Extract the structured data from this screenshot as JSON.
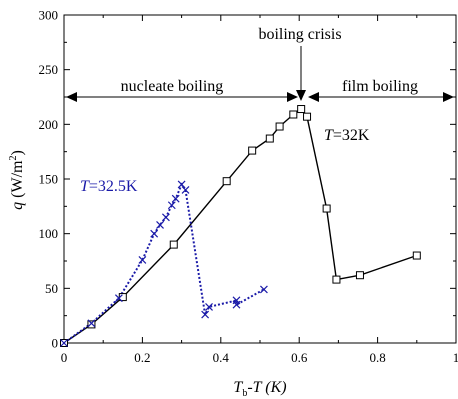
{
  "chart_data": {
    "type": "line",
    "xlabel": {
      "main": "T",
      "sub": "b",
      "rest": "-T  (K)"
    },
    "ylabel": {
      "main": "q",
      "rest": " (W/m",
      "sup": "2",
      "close": ")"
    },
    "xlim": [
      0,
      1
    ],
    "ylim": [
      0,
      300
    ],
    "xticks": [
      0,
      0.2,
      0.4,
      0.6,
      0.8,
      1
    ],
    "xtick_labels": [
      "0",
      "0.2",
      "0.4",
      "0.6",
      "0.8",
      "1"
    ],
    "yticks": [
      0,
      50,
      100,
      150,
      200,
      250,
      300
    ],
    "ytick_labels": [
      "0",
      "50",
      "100",
      "150",
      "200",
      "250",
      "300"
    ],
    "grid": false,
    "series": [
      {
        "name": "T=32K",
        "color": "#000000",
        "line": "solid",
        "marker": "square",
        "x": [
          0.0,
          0.07,
          0.15,
          0.28,
          0.415,
          0.48,
          0.525,
          0.55,
          0.585,
          0.605,
          0.62,
          0.67,
          0.695,
          0.755,
          0.9
        ],
        "y": [
          0,
          17,
          42,
          90,
          148,
          176,
          187,
          198,
          209,
          214,
          207,
          123,
          58,
          62,
          80
        ]
      },
      {
        "name": "T=32.5K",
        "color": "#1a1aa8",
        "line": "dotted",
        "marker": "x",
        "x": [
          0.0,
          0.07,
          0.14,
          0.2,
          0.23,
          0.245,
          0.26,
          0.275,
          0.285,
          0.3,
          0.31,
          0.36,
          0.37,
          0.44,
          0.44,
          0.51
        ],
        "y": [
          0,
          18,
          41,
          76,
          100,
          108,
          115,
          126,
          132,
          145,
          140,
          26,
          33,
          39,
          35,
          49
        ]
      }
    ],
    "annotations": {
      "crisis_label": "boiling crisis",
      "nucleate_label": "nucleate boiling",
      "film_label": "film boiling",
      "curve32_label": {
        "italic": "T",
        "rest": "=32K"
      },
      "curve325_label": {
        "italic": "T",
        "rest": "=32.5K"
      }
    }
  }
}
